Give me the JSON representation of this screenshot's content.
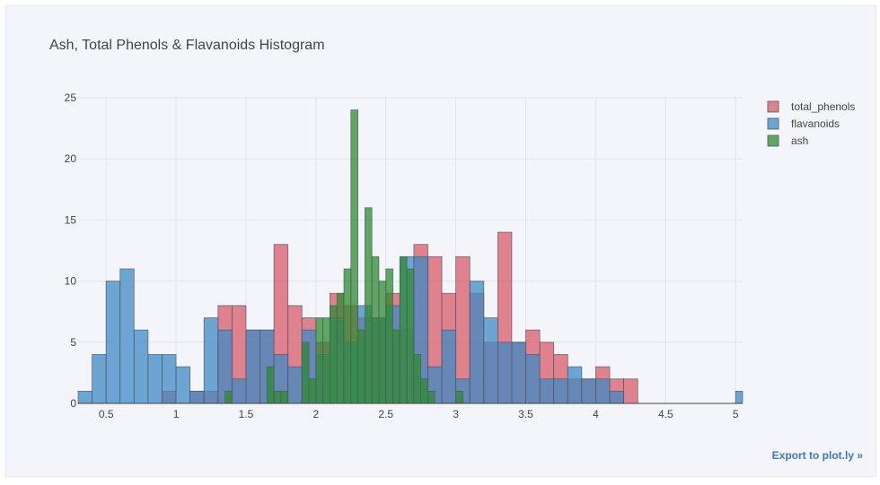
{
  "export_link": "Export to plot.ly »",
  "chart_data": {
    "type": "histogram",
    "title": "Ash, Total Phenols & Flavanoids Histogram",
    "xlabel": "",
    "ylabel": "",
    "xlim": [
      0.3,
      5.05
    ],
    "ylim": [
      0,
      25
    ],
    "xticks": [
      0.5,
      1,
      1.5,
      2,
      2.5,
      3,
      3.5,
      4,
      4.5,
      5
    ],
    "xtick_labels": [
      "0.5",
      "1",
      "1.5",
      "2",
      "2.5",
      "3",
      "3.5",
      "4",
      "4.5",
      "5"
    ],
    "yticks": [
      0,
      5,
      10,
      15,
      20,
      25
    ],
    "ytick_labels": [
      "0",
      "5",
      "10",
      "15",
      "20",
      "25"
    ],
    "grid": true,
    "barmode": "overlay",
    "legend_position": "top-right",
    "series": [
      {
        "name": "total_phenols",
        "color": "#d9596a",
        "bin_start": 0.9,
        "bin_width": 0.1,
        "counts": [
          1,
          0,
          1,
          1,
          8,
          8,
          6,
          6,
          13,
          8,
          7,
          5,
          9,
          8,
          7,
          7,
          9,
          6,
          13,
          12,
          9,
          12,
          9,
          5,
          14,
          5,
          6,
          5,
          4,
          2,
          2,
          3,
          2,
          2
        ]
      },
      {
        "name": "flavanoids",
        "color": "#3f8ac4",
        "bin_start": 0.3,
        "bin_width": 0.1,
        "counts": [
          1,
          4,
          10,
          11,
          6,
          4,
          4,
          3,
          1,
          7,
          6,
          2,
          6,
          6,
          4,
          3,
          6,
          4,
          7,
          5,
          8,
          7,
          8,
          12,
          12,
          3,
          6,
          2,
          10,
          7,
          5,
          5,
          4,
          2,
          2,
          3,
          2,
          2,
          1,
          0,
          0,
          0,
          0,
          0,
          0,
          0,
          0,
          1
        ]
      },
      {
        "name": "ash",
        "color": "#2e8b2e",
        "bin_start": 1.35,
        "bin_width": 0.05,
        "counts": [
          1,
          0,
          0,
          0,
          0,
          0,
          3,
          1,
          1,
          0,
          0,
          5,
          2,
          7,
          7,
          8,
          9,
          11,
          24,
          6,
          16,
          12,
          10,
          11,
          6,
          12,
          11,
          4,
          2,
          1,
          0,
          0,
          0,
          1
        ]
      }
    ]
  }
}
